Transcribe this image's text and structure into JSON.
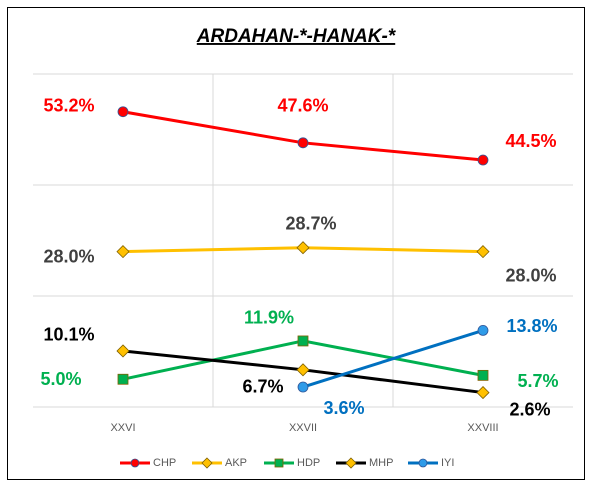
{
  "chart_data": {
    "type": "line",
    "title": "ARDAHAN-*-HANAK-*",
    "categories": [
      "XXVI",
      "XXVII",
      "XXVIII"
    ],
    "ylim": [
      0,
      60
    ],
    "yticks": [
      0,
      20,
      40,
      60
    ],
    "grid": true,
    "legend": "bottom",
    "series": [
      {
        "name": "CHP",
        "color": "#ff0000",
        "label_color": "#ff0000",
        "marker": "circle",
        "marker_color": "#ff0000",
        "values": [
          53.2,
          47.6,
          44.5
        ],
        "value_labels": [
          "53.2%",
          "47.6%",
          "44.5%"
        ]
      },
      {
        "name": "AKP",
        "color": "#ffc000",
        "label_color": "#404040",
        "marker": "diamond",
        "marker_color": "#ffc000",
        "values": [
          28.0,
          28.7,
          28.0
        ],
        "value_labels": [
          "28.0%",
          "28.7%",
          "28.0%"
        ]
      },
      {
        "name": "HDP",
        "color": "#00b050",
        "label_color": "#00b050",
        "marker": "square",
        "marker_color": "#00b050",
        "values": [
          5.0,
          11.9,
          5.7
        ],
        "value_labels": [
          "5.0%",
          "11.9%",
          "5.7%"
        ]
      },
      {
        "name": "MHP",
        "color": "#000000",
        "label_color": "#000000",
        "marker": "diamond",
        "marker_color": "#ffc000",
        "values": [
          10.1,
          6.7,
          2.6
        ],
        "value_labels": [
          "10.1%",
          "6.7%",
          "2.6%"
        ]
      },
      {
        "name": "IYI",
        "color": "#0070c0",
        "label_color": "#0070c0",
        "marker": "circle",
        "marker_color": "#2e9be8",
        "values": [
          null,
          3.6,
          13.8
        ],
        "value_labels": [
          null,
          "3.6%",
          "13.8%"
        ]
      }
    ]
  }
}
